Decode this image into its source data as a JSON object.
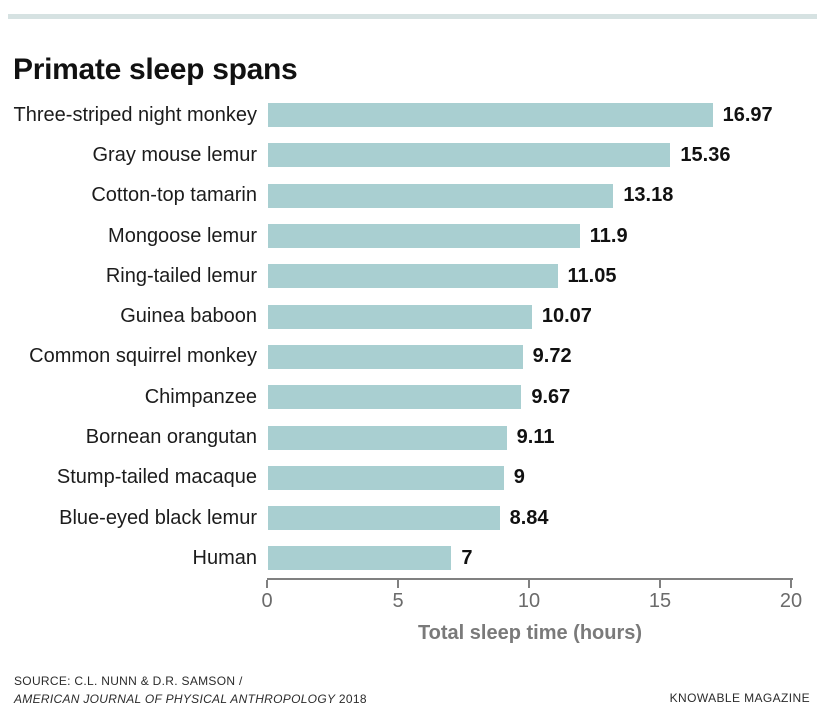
{
  "title": "Primate sleep spans",
  "colors": {
    "bar": "#a9cfd1",
    "accent_line": "#d6e2e2",
    "axis": "#808080",
    "tick_label": "#6b6b6b",
    "axis_title": "#7a7a7a",
    "title_text": "#111111"
  },
  "chart_data": {
    "type": "bar",
    "orientation": "horizontal",
    "title": "Primate sleep spans",
    "categories": [
      "Three-striped night monkey",
      "Gray mouse lemur",
      "Cotton-top tamarin",
      "Mongoose lemur",
      "Ring-tailed lemur",
      "Guinea baboon",
      "Common squirrel monkey",
      "Chimpanzee",
      "Bornean orangutan",
      "Stump-tailed macaque",
      "Blue-eyed black lemur",
      "Human"
    ],
    "values": [
      16.97,
      15.36,
      13.18,
      11.9,
      11.05,
      10.07,
      9.72,
      9.67,
      9.11,
      9,
      8.84,
      7
    ],
    "value_labels": [
      "16.97",
      "15.36",
      "13.18",
      "11.9",
      "11.05",
      "10.07",
      "9.72",
      "9.67",
      "9.11",
      "9",
      "8.84",
      "7"
    ],
    "xlabel": "Total sleep time (hours)",
    "ylabel": "",
    "xlim": [
      0,
      20
    ],
    "xticks": [
      0,
      5,
      10,
      15,
      20
    ],
    "xtick_labels": [
      "0",
      "5",
      "10",
      "15",
      "20"
    ],
    "grid": false,
    "legend": false,
    "bar_color": "#a9cfd1"
  },
  "footer": {
    "source_line1": "SOURCE: C.L. NUNN & D.R. SAMSON /",
    "source_line2_journal": "AMERICAN JOURNAL OF PHYSICAL ANTHROPOLOGY",
    "source_line2_year": " 2018",
    "credit": "KNOWABLE MAGAZINE"
  }
}
